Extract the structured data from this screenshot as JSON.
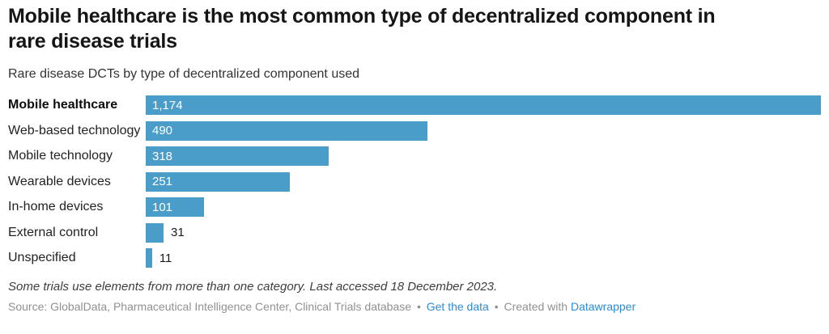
{
  "header": {
    "title_lines": [
      "Mobile healthcare is the most common type of decentralized component in",
      "rare disease trials"
    ],
    "subtitle": "Rare disease DCTs by type of decentralized component used"
  },
  "chart_data": {
    "type": "bar",
    "orientation": "horizontal",
    "title": "Mobile healthcare is the most common type of decentralized component in rare disease trials",
    "subtitle": "Rare disease DCTs by type of decentralized component used",
    "categories": [
      "Mobile healthcare",
      "Web-based technology",
      "Mobile technology",
      "Wearable devices",
      "In-home devices",
      "External control",
      "Unspecified"
    ],
    "values": [
      1174,
      490,
      318,
      251,
      101,
      31,
      11
    ],
    "value_labels": [
      "1,174",
      "490",
      "318",
      "251",
      "101",
      "31",
      "11"
    ],
    "label_inside": [
      true,
      true,
      true,
      true,
      true,
      false,
      false
    ],
    "emphasized_category_index": 0,
    "xlim": [
      0,
      1174
    ],
    "grid": false,
    "legend": "none",
    "bar_color": "#4a9cc9"
  },
  "footer": {
    "note": "Some trials use elements from more than one category. Last accessed 18 December 2023.",
    "source_prefix": "Source: GlobalData, Pharmaceutical Intelligence Center, Clinical Trials database",
    "separator": "•",
    "get_data_label": "Get the data",
    "created_with_label": "Created with",
    "datawrapper_label": "Datawrapper",
    "link_color": "#2e8bd0"
  }
}
